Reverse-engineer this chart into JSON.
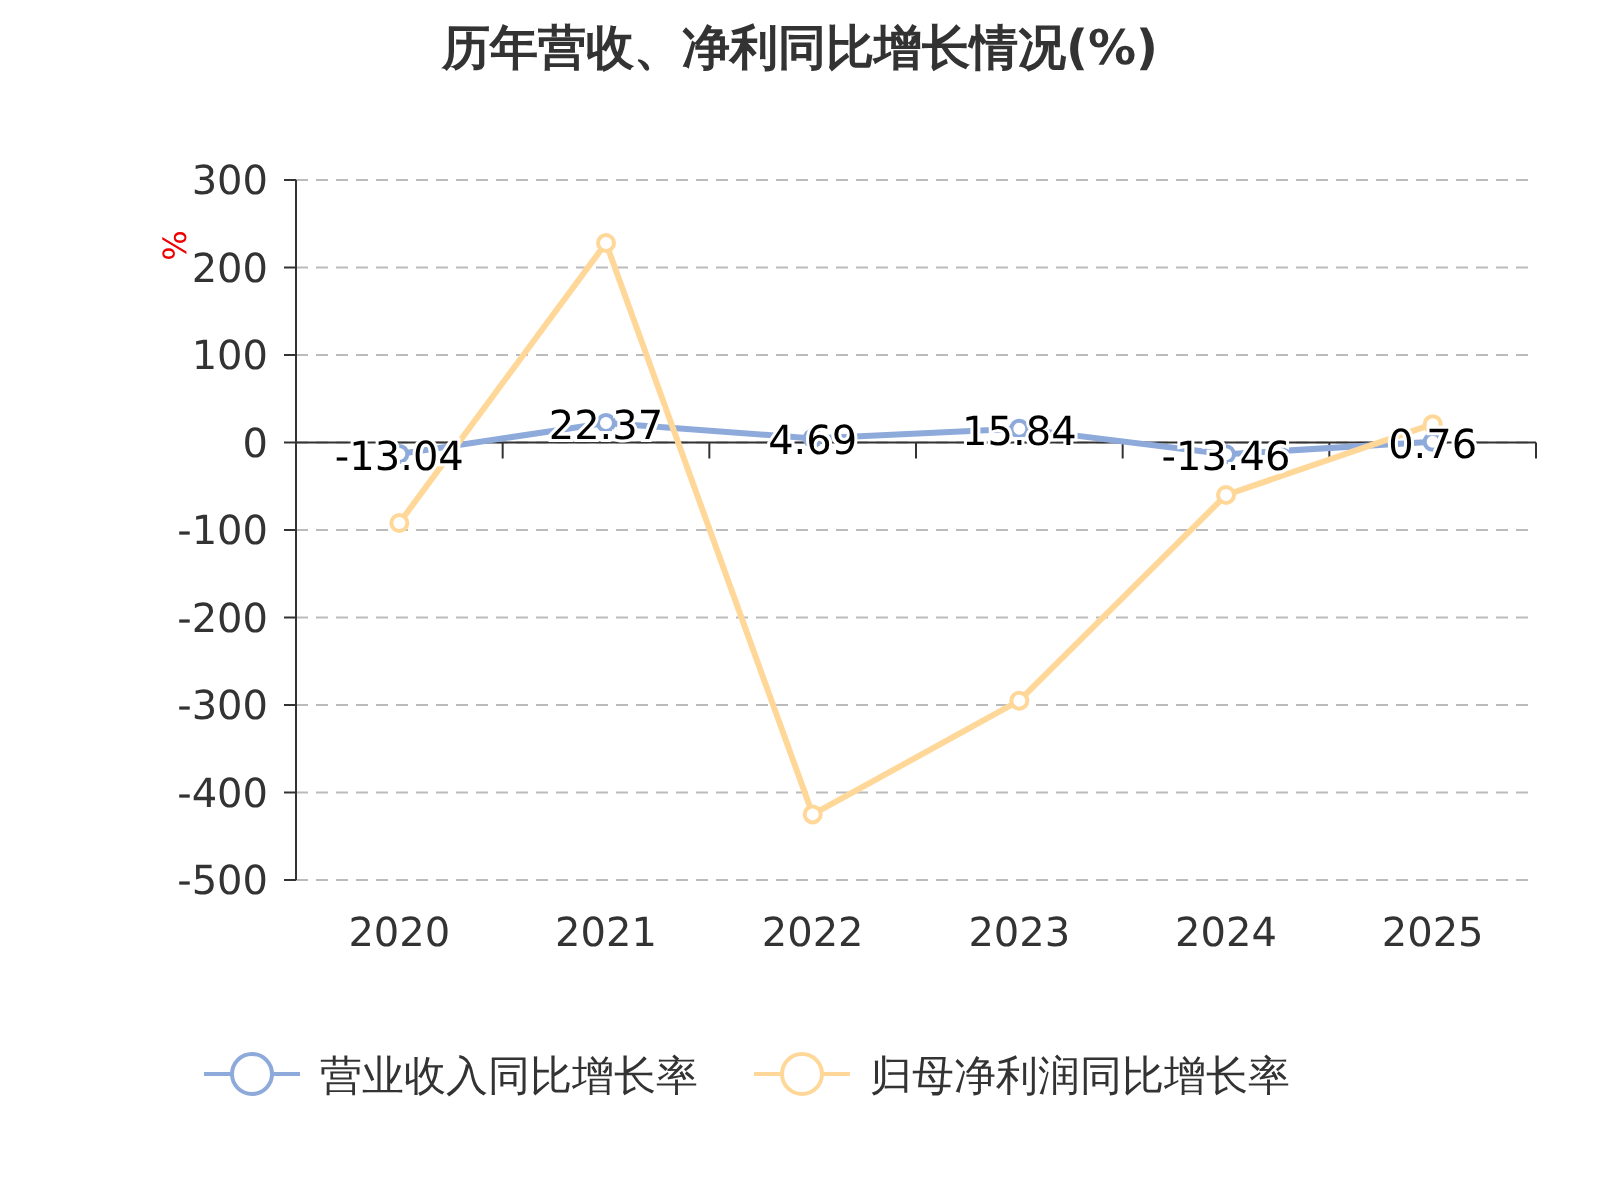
{
  "chart_data": {
    "type": "line",
    "title": "历年营收、净利同比增长情况(%)",
    "ylabel": "%",
    "categories": [
      "2020",
      "2021",
      "2022",
      "2023",
      "2024",
      "2025"
    ],
    "series": [
      {
        "name": "营业收入同比增长率",
        "color": "#8eaadb",
        "values": [
          -13.04,
          22.37,
          4.69,
          15.84,
          -13.46,
          0.76
        ],
        "value_labels": [
          "-13.04",
          "22.37",
          "4.69",
          "15.84",
          "-13.46",
          "0.76"
        ]
      },
      {
        "name": "归母净利润同比增长率",
        "color": "#ffd899",
        "values": [
          -92,
          228,
          -425,
          -295,
          -60,
          21
        ]
      }
    ],
    "ylim": [
      -500,
      300
    ],
    "yticks": [
      -500,
      -400,
      -300,
      -200,
      -100,
      0,
      100,
      200,
      300
    ],
    "grid": "y",
    "legend": "bottom",
    "marker": "circle"
  }
}
